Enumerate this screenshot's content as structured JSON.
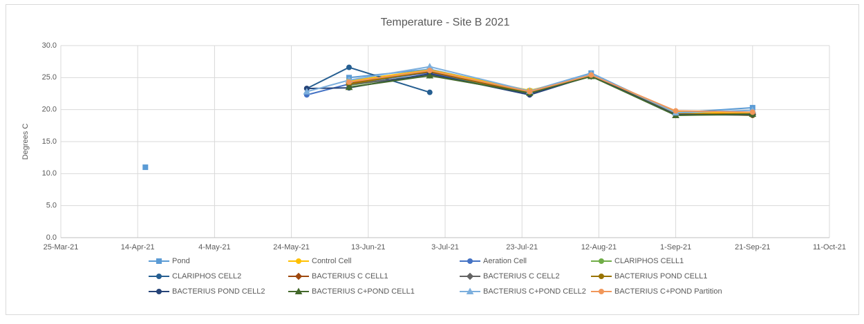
{
  "chart_data": {
    "type": "line",
    "title": "Temperature - Site B 2021",
    "y_label": "Degrees C",
    "x": [
      "2021-04-16",
      "2021-05-28",
      "2021-06-08",
      "2021-06-29",
      "2021-07-25",
      "2021-08-10",
      "2021-09-01",
      "2021-09-21"
    ],
    "xlim": [
      "2021-03-25",
      "2021-10-11"
    ],
    "xticks": [
      {
        "value": "2021-03-25",
        "label": "25-Mar-21"
      },
      {
        "value": "2021-04-14",
        "label": "14-Apr-21"
      },
      {
        "value": "2021-05-04",
        "label": "4-May-21"
      },
      {
        "value": "2021-05-24",
        "label": "24-May-21"
      },
      {
        "value": "2021-06-13",
        "label": "13-Jun-21"
      },
      {
        "value": "2021-07-03",
        "label": "3-Jul-21"
      },
      {
        "value": "2021-07-23",
        "label": "23-Jul-21"
      },
      {
        "value": "2021-08-12",
        "label": "12-Aug-21"
      },
      {
        "value": "2021-09-01",
        "label": "1-Sep-21"
      },
      {
        "value": "2021-09-21",
        "label": "21-Sep-21"
      },
      {
        "value": "2021-10-11",
        "label": "11-Oct-21"
      }
    ],
    "ylim": [
      0,
      30
    ],
    "yticks": [
      {
        "value": 0,
        "label": "0.0"
      },
      {
        "value": 5,
        "label": "5.0"
      },
      {
        "value": 10,
        "label": "10.0"
      },
      {
        "value": 15,
        "label": "15.0"
      },
      {
        "value": 20,
        "label": "20.0"
      },
      {
        "value": 25,
        "label": "25.0"
      },
      {
        "value": 30,
        "label": "30.0"
      }
    ],
    "grid": true,
    "legend": "bottom",
    "series": [
      {
        "name": "Pond",
        "color": "#5b9bd5",
        "marker": "square",
        "values": [
          11.0,
          null,
          25.0,
          26.3,
          22.9,
          25.7,
          19.5,
          20.3
        ]
      },
      {
        "name": "Control Cell",
        "color": "#ffc000",
        "marker": "circle",
        "values": [
          null,
          null,
          24.5,
          26.2,
          23.0,
          25.3,
          19.6,
          19.4
        ]
      },
      {
        "name": "Aeration Cell",
        "color": "#4472c4",
        "marker": "circle",
        "values": [
          null,
          22.3,
          24.0,
          25.8,
          22.6,
          25.3,
          19.3,
          19.2
        ]
      },
      {
        "name": "CLARIPHOS CELL1",
        "color": "#70ad47",
        "marker": "circle",
        "values": [
          null,
          null,
          23.8,
          25.5,
          22.8,
          25.2,
          19.2,
          19.2
        ]
      },
      {
        "name": "CLARIPHOS CELL2",
        "color": "#255e91",
        "marker": "circle",
        "values": [
          null,
          23.3,
          26.6,
          22.7,
          null,
          null,
          null,
          null
        ]
      },
      {
        "name": "BACTERIUS C CELL1",
        "color": "#9e480e",
        "marker": "diamond",
        "values": [
          null,
          null,
          24.2,
          25.9,
          22.6,
          25.3,
          19.3,
          19.3
        ]
      },
      {
        "name": "BACTERIUS C CELL2",
        "color": "#636363",
        "marker": "diamond",
        "values": [
          null,
          null,
          23.9,
          25.4,
          22.5,
          25.2,
          19.2,
          19.2
        ]
      },
      {
        "name": "BACTERIUS POND CELL1",
        "color": "#997300",
        "marker": "circle",
        "values": [
          null,
          null,
          24.0,
          26.0,
          22.7,
          25.3,
          19.4,
          19.1
        ]
      },
      {
        "name": "BACTERIUS POND CELL2",
        "color": "#264478",
        "marker": "circle",
        "values": [
          null,
          23.3,
          23.4,
          25.6,
          22.3,
          25.3,
          19.2,
          19.2
        ]
      },
      {
        "name": "BACTERIUS C+POND CELL1",
        "color": "#43682b",
        "marker": "triangle",
        "values": [
          null,
          null,
          23.5,
          25.3,
          22.6,
          25.2,
          19.1,
          19.3
        ]
      },
      {
        "name": "BACTERIUS C+POND CELL2",
        "color": "#7cafdd",
        "marker": "triangle",
        "values": [
          null,
          22.8,
          24.6,
          26.7,
          22.9,
          25.6,
          19.5,
          19.9
        ]
      },
      {
        "name": "BACTERIUS C+POND Partition",
        "color": "#f1975a",
        "marker": "circle",
        "values": [
          null,
          null,
          24.3,
          26.1,
          22.8,
          25.4,
          19.8,
          19.6
        ]
      }
    ]
  }
}
